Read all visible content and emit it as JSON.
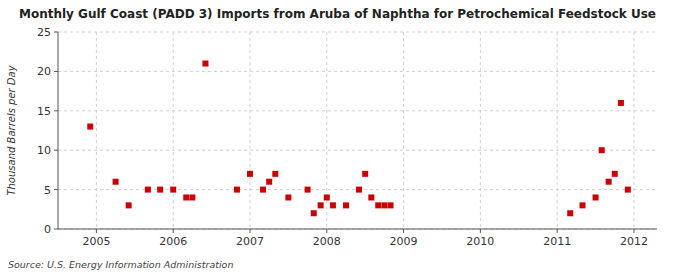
{
  "chart_data": {
    "type": "scatter",
    "title": "Monthly Gulf Coast (PADD 3) Imports from Aruba of Naphtha for Petrochemical Feedstock Use",
    "ylabel": "Thousand Barrels per Day",
    "source": "Source: U.S. Energy Information Administration",
    "color": "#cc0000",
    "marker": "square",
    "grid": true,
    "xlim": [
      2004.5,
      2012.3
    ],
    "ylim": [
      0,
      25
    ],
    "xticks": [
      2005,
      2006,
      2007,
      2008,
      2009,
      2010,
      2011,
      2012
    ],
    "yticks": [
      0,
      5,
      10,
      15,
      20,
      25
    ],
    "x": [
      2004.92,
      2005.25,
      2005.42,
      2005.67,
      2005.83,
      2006.0,
      2006.17,
      2006.25,
      2006.42,
      2006.83,
      2007.0,
      2007.17,
      2007.25,
      2007.33,
      2007.5,
      2007.75,
      2007.83,
      2007.92,
      2008.0,
      2008.08,
      2008.25,
      2008.42,
      2008.5,
      2008.58,
      2008.67,
      2008.75,
      2008.83,
      2011.17,
      2011.33,
      2011.5,
      2011.58,
      2011.67,
      2011.75,
      2011.83,
      2011.92
    ],
    "values": [
      13,
      6,
      3,
      5,
      5,
      5,
      4,
      4,
      21,
      5,
      7,
      5,
      6,
      7,
      4,
      5,
      2,
      3,
      4,
      3,
      3,
      5,
      7,
      4,
      3,
      3,
      3,
      2,
      3,
      4,
      10,
      6,
      7,
      16,
      5
    ]
  }
}
